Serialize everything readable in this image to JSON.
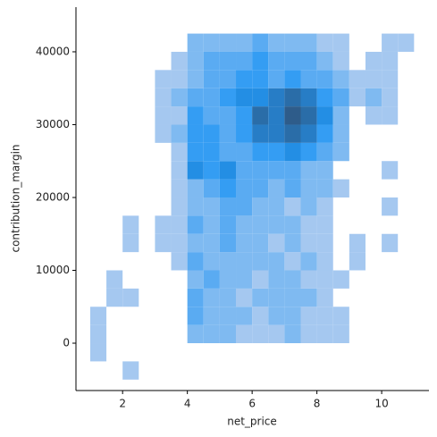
{
  "chart_data": {
    "type": "hist2d",
    "xlabel": "net_price",
    "ylabel": "contribution_margin",
    "xbins": [
      1,
      1.5,
      2,
      2.5,
      3,
      3.5,
      4,
      4.5,
      5,
      5.5,
      6,
      6.5,
      7,
      7.5,
      8,
      8.5,
      9,
      9.5,
      10,
      10.5,
      11
    ],
    "ybins": [
      -5000,
      -2500,
      0,
      2500,
      5000,
      7500,
      10000,
      12500,
      15000,
      17500,
      20000,
      22500,
      25000,
      27500,
      30000,
      32500,
      35000,
      37500,
      40000,
      42500
    ],
    "counts": [
      [
        0,
        0,
        1,
        0,
        0,
        0,
        0,
        0,
        0,
        0,
        0,
        0,
        0,
        0,
        0,
        0,
        0,
        0,
        0,
        0
      ],
      [
        1,
        0,
        0,
        0,
        0,
        0,
        0,
        0,
        0,
        0,
        0,
        0,
        0,
        0,
        0,
        0,
        0,
        0,
        0,
        0
      ],
      [
        1,
        0,
        0,
        0,
        0,
        0,
        2,
        2,
        2,
        1,
        1,
        1,
        2,
        1,
        1,
        1,
        0,
        0,
        0,
        0
      ],
      [
        1,
        0,
        0,
        0,
        0,
        0,
        3,
        2,
        2,
        2,
        1,
        2,
        2,
        1,
        1,
        1,
        0,
        0,
        0,
        0
      ],
      [
        0,
        1,
        1,
        0,
        0,
        0,
        3,
        2,
        2,
        1,
        2,
        2,
        2,
        2,
        1,
        0,
        0,
        0,
        0,
        0
      ],
      [
        0,
        1,
        0,
        0,
        0,
        0,
        2,
        3,
        2,
        2,
        1,
        2,
        2,
        1,
        1,
        1,
        0,
        0,
        0,
        0
      ],
      [
        0,
        0,
        0,
        0,
        0,
        1,
        3,
        2,
        2,
        2,
        2,
        2,
        1,
        2,
        1,
        0,
        1,
        0,
        0,
        0
      ],
      [
        0,
        0,
        1,
        0,
        1,
        1,
        2,
        2,
        3,
        2,
        2,
        1,
        2,
        1,
        1,
        0,
        1,
        0,
        1,
        0
      ],
      [
        0,
        0,
        1,
        0,
        1,
        1,
        3,
        2,
        3,
        2,
        2,
        2,
        2,
        1,
        1,
        0,
        0,
        0,
        0,
        0
      ],
      [
        0,
        0,
        0,
        0,
        0,
        1,
        2,
        2,
        3,
        3,
        2,
        2,
        1,
        2,
        1,
        0,
        0,
        0,
        1,
        0
      ],
      [
        0,
        0,
        0,
        0,
        0,
        1,
        2,
        3,
        4,
        3,
        3,
        2,
        3,
        2,
        2,
        1,
        0,
        0,
        0,
        0
      ],
      [
        0,
        0,
        0,
        0,
        0,
        1,
        5,
        4,
        5,
        3,
        3,
        3,
        3,
        2,
        2,
        0,
        0,
        0,
        1,
        0
      ],
      [
        0,
        0,
        0,
        0,
        0,
        1,
        4,
        4,
        3,
        3,
        4,
        4,
        5,
        4,
        3,
        2,
        0,
        0,
        0,
        0
      ],
      [
        0,
        0,
        0,
        0,
        1,
        2,
        4,
        4,
        3,
        4,
        6,
        6,
        7,
        6,
        4,
        2,
        0,
        0,
        0,
        0
      ],
      [
        0,
        0,
        0,
        0,
        1,
        1,
        4,
        3,
        3,
        4,
        7,
        6,
        8,
        7,
        5,
        2,
        0,
        1,
        1,
        0
      ],
      [
        0,
        0,
        0,
        0,
        1,
        2,
        3,
        3,
        4,
        5,
        5,
        6,
        7,
        6,
        4,
        3,
        1,
        2,
        1,
        0
      ],
      [
        0,
        0,
        0,
        0,
        1,
        1,
        2,
        3,
        3,
        4,
        4,
        3,
        4,
        3,
        3,
        2,
        1,
        1,
        1,
        0
      ],
      [
        0,
        0,
        0,
        0,
        0,
        1,
        2,
        3,
        3,
        3,
        4,
        3,
        3,
        3,
        2,
        1,
        0,
        1,
        1,
        0
      ],
      [
        0,
        0,
        0,
        0,
        0,
        0,
        2,
        2,
        2,
        2,
        3,
        2,
        2,
        2,
        1,
        1,
        0,
        0,
        1,
        1
      ]
    ],
    "colors": [
      "#a5c8f0",
      "#2196f3",
      "#2e5c8a"
    ],
    "xlim": [
      0.56,
      11.46
    ],
    "ylim": [
      -6500,
      46130
    ],
    "xticks": [
      2,
      4,
      6,
      8,
      10
    ],
    "yticks": [
      0,
      10000,
      20000,
      30000,
      40000
    ]
  }
}
